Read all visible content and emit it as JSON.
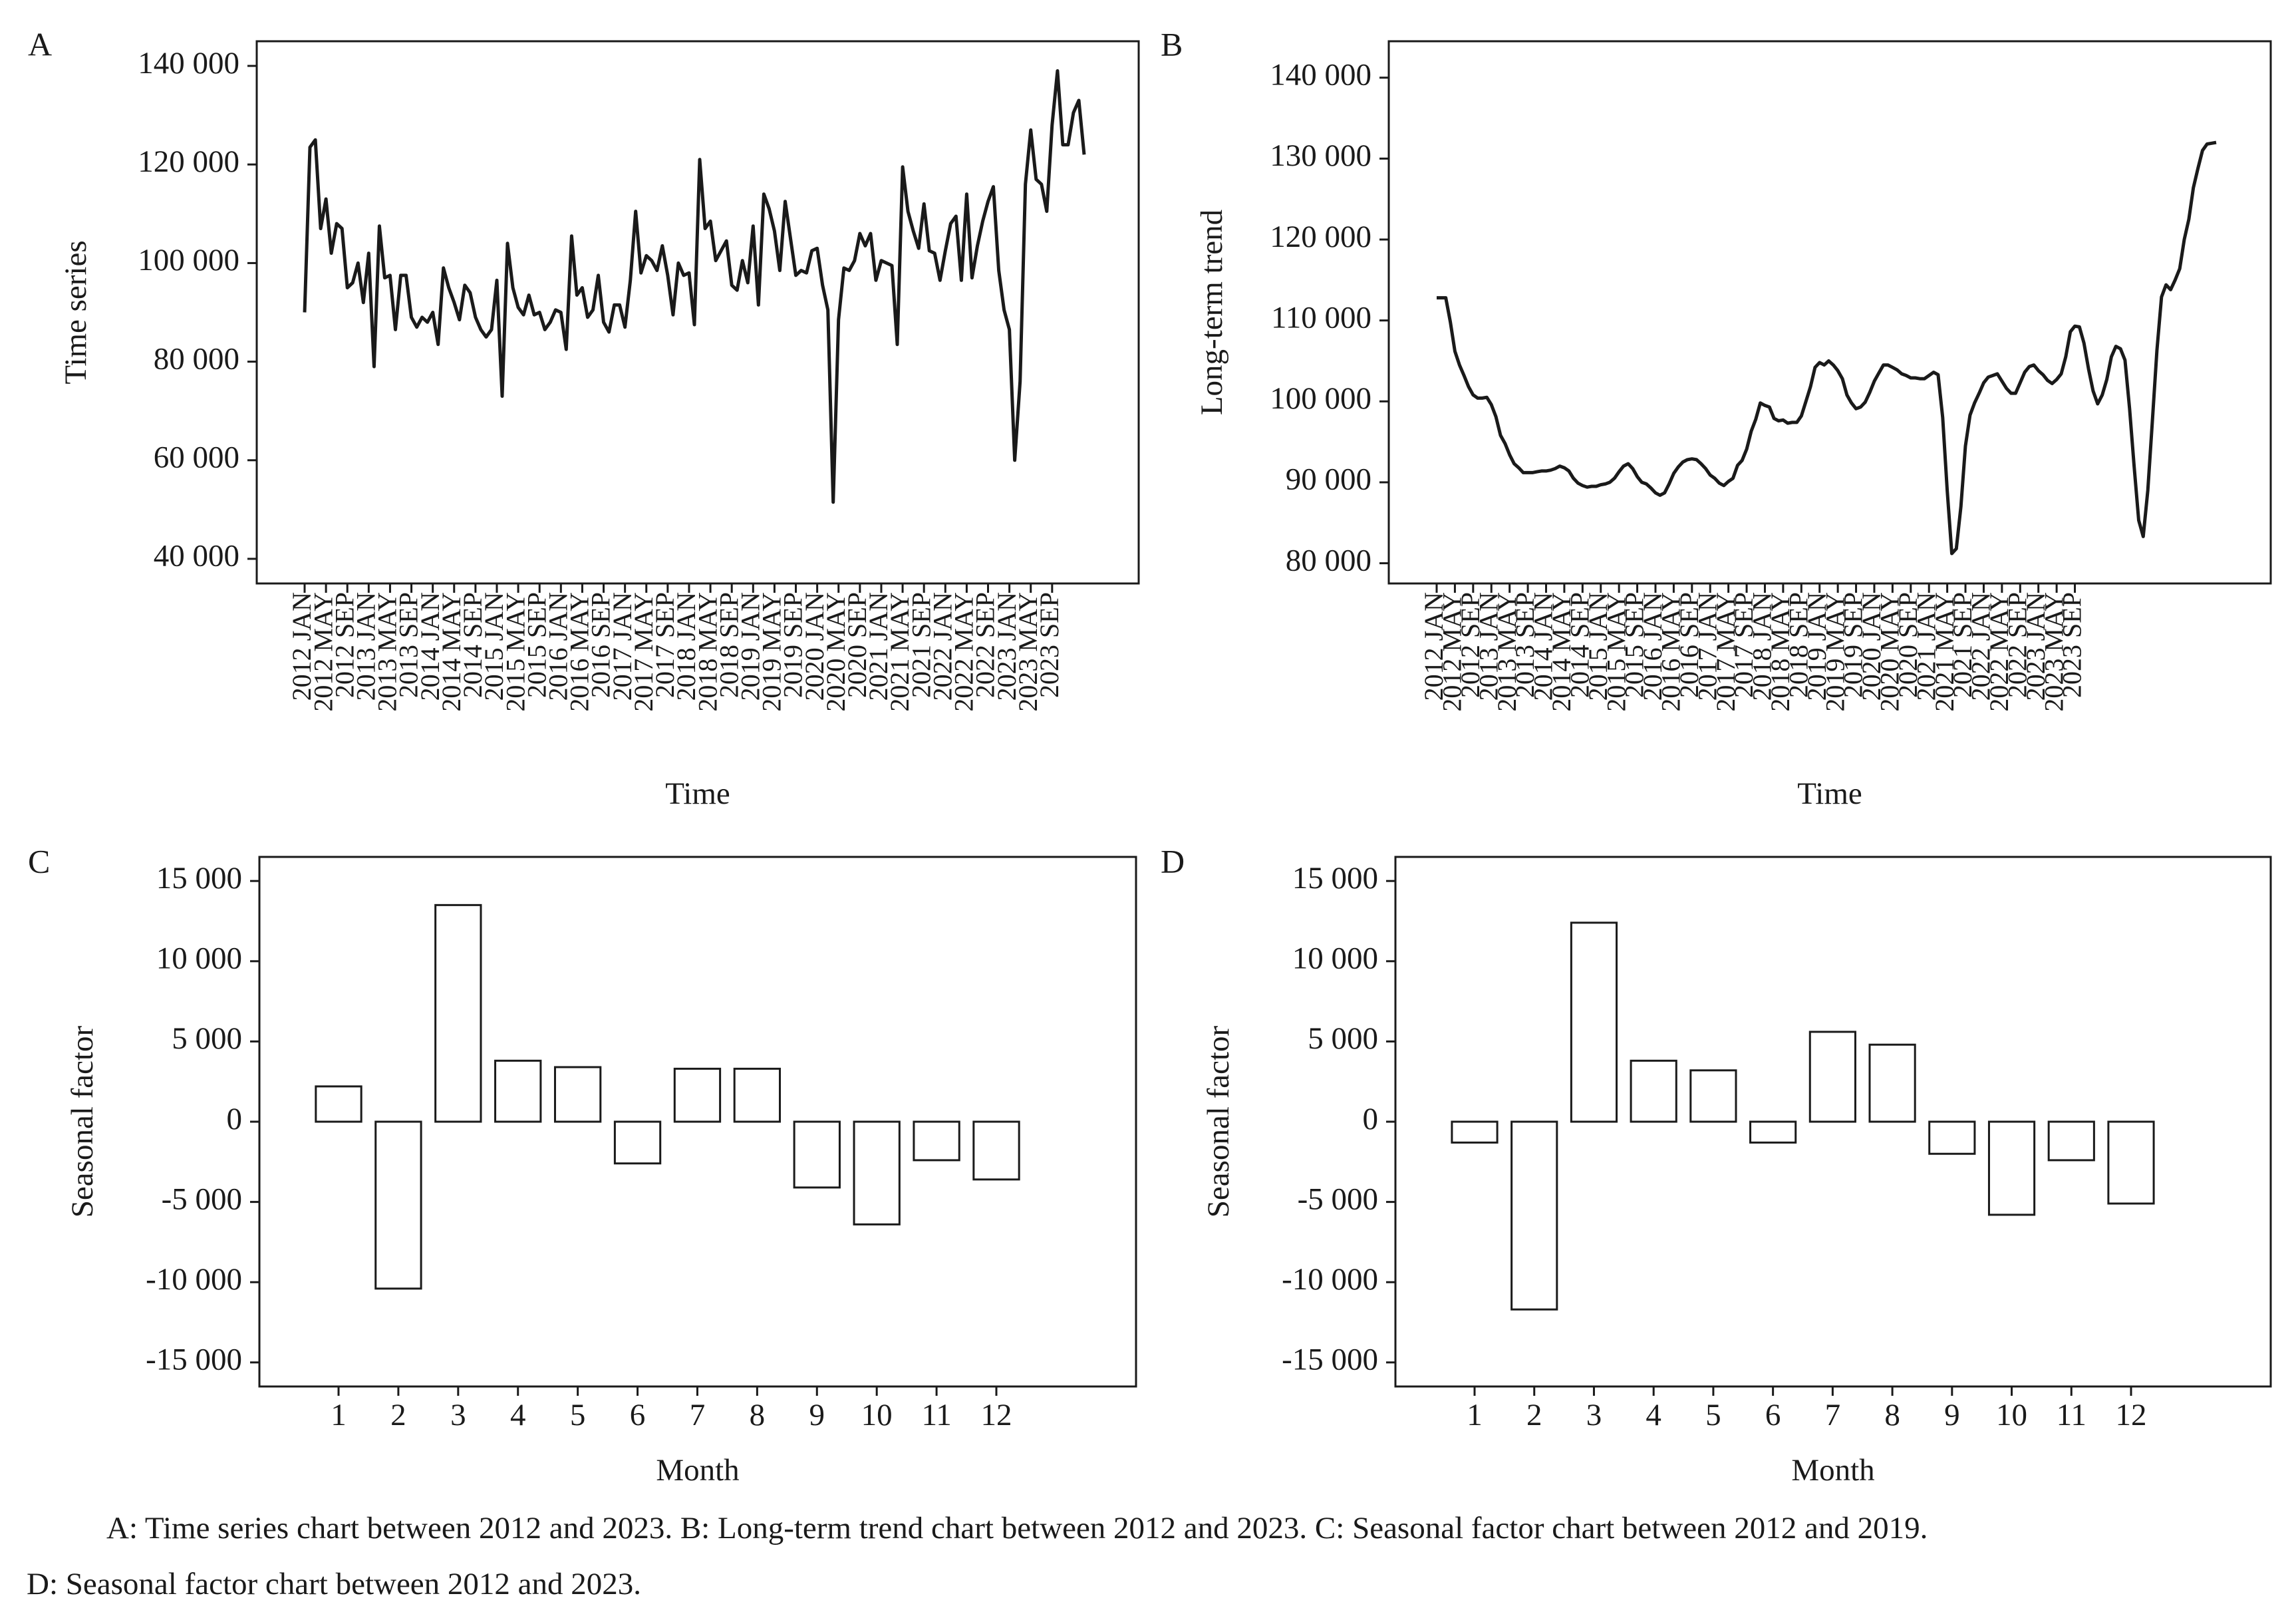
{
  "caption": {
    "line1": "A: Time series chart between 2012 and 2023. B: Long-term trend chart between 2012 and 2023. C: Seasonal factor chart between 2012 and 2019.",
    "line2": "D: Seasonal factor chart between 2012 and 2023."
  },
  "chart_data": [
    {
      "panel": "A",
      "type": "line",
      "xlabel": "Time",
      "ylabel": "Time series",
      "ylim": [
        35000,
        145000
      ],
      "yticks": [
        40000,
        60000,
        80000,
        100000,
        120000,
        140000
      ],
      "ytick_labels": [
        "40 000",
        "60 000",
        "80 000",
        "100 000",
        "120 000",
        "140 000"
      ],
      "xtick_labels": [
        "2012 JAN",
        "2012 MAY",
        "2012 SEP",
        "2013 JAN",
        "2013 MAY",
        "2013 SEP",
        "2014 JAN",
        "2014 MAY",
        "2014 SEP",
        "2015 JAN",
        "2015 MAY",
        "2015 SEP",
        "2016 JAN",
        "2016 MAY",
        "2016 SEP",
        "2017 JAN",
        "2017 MAY",
        "2017 SEP",
        "2018 JAN",
        "2018 MAY",
        "2018 SEP",
        "2019 JAN",
        "2019 MAY",
        "2019 SEP",
        "2020 JAN",
        "2020 MAY",
        "2020 SEP",
        "2021 JAN",
        "2021 MAY",
        "2021 SEP",
        "2022 JAN",
        "2022 MAY",
        "2022 SEP",
        "2023 JAN",
        "2023 MAY",
        "2023 SEP"
      ],
      "series": [
        {
          "values": [
            90000,
            123500,
            125000,
            107000,
            113000,
            102000,
            108000,
            107000,
            95000,
            96000,
            100000,
            92000,
            102000,
            79000,
            107500,
            97000,
            97500,
            86500,
            97500,
            97500,
            89000,
            87000,
            89000,
            88000,
            90000,
            83500,
            99000,
            95000,
            92000,
            88500,
            95500,
            94000,
            89000,
            86500,
            85000,
            86500,
            96500,
            73000,
            104000,
            95000,
            91000,
            89500,
            93500,
            89500,
            90000,
            86500,
            88000,
            90500,
            90000,
            82500,
            105500,
            93500,
            95000,
            89000,
            90500,
            97500,
            88000,
            86000,
            91500,
            91500,
            87000,
            96500,
            110500,
            98000,
            101500,
            100500,
            98500,
            103500,
            97500,
            89500,
            100000,
            97500,
            98000,
            87500,
            121000,
            107000,
            108500,
            100500,
            102500,
            104500,
            95500,
            94500,
            100500,
            96000,
            107500,
            91500,
            114000,
            111000,
            106500,
            98500,
            112500,
            105000,
            97500,
            98500,
            98000,
            102500,
            103000,
            95500,
            90500,
            51500,
            88500,
            99000,
            98500,
            100500,
            106000,
            103500,
            106000,
            96500,
            100500,
            100000,
            99500,
            83500,
            119500,
            110500,
            106500,
            103000,
            112000,
            102500,
            102000,
            96500,
            102500,
            108000,
            109500,
            96500,
            114000,
            97000,
            103500,
            108500,
            112500,
            115500,
            98500,
            90500,
            86500,
            60000,
            76000,
            116000,
            127000,
            117000,
            116000,
            110500,
            128000,
            139000,
            124000,
            124000,
            130500,
            133000,
            122000
          ]
        }
      ]
    },
    {
      "panel": "B",
      "type": "line",
      "xlabel": "Time",
      "ylabel": "Long-term trend",
      "ylim": [
        77500,
        144500
      ],
      "yticks": [
        80000,
        90000,
        100000,
        110000,
        120000,
        130000,
        140000
      ],
      "ytick_labels": [
        "80 000",
        "90 000",
        "100 000",
        "110 000",
        "120 000",
        "130 000",
        "140 000"
      ],
      "xtick_labels": [
        "2012 JAN",
        "2012 MAY",
        "2012 SEP",
        "2013 JAN",
        "2013 MAY",
        "2013 SEP",
        "2014 JAN",
        "2014 MAY",
        "2014 SEP",
        "2015 JAN",
        "2015 MAY",
        "2015 SEP",
        "2016 JAN",
        "2016 MAY",
        "2016 SEP",
        "2017 JAN",
        "2017 MAY",
        "2017 SEP",
        "2018 JAN",
        "2018 MAY",
        "2018 SEP",
        "2019 JAN",
        "2019 MAY",
        "2019 SEP",
        "2020 JAN",
        "2020 MAY",
        "2020 SEP",
        "2021 JAN",
        "2021 MAY",
        "2021 SEP",
        "2022 JAN",
        "2022 MAY",
        "2022 SEP",
        "2023 JAN",
        "2023 MAY",
        "2023 SEP"
      ],
      "series": [
        {
          "values": [
            112800,
            112800,
            112800,
            109800,
            106200,
            104500,
            103200,
            101800,
            100800,
            100400,
            100400,
            100500,
            99600,
            98100,
            95800,
            94800,
            93400,
            92300,
            91800,
            91200,
            91200,
            91200,
            91300,
            91400,
            91400,
            91500,
            91700,
            92000,
            91800,
            91400,
            90500,
            89900,
            89600,
            89400,
            89500,
            89500,
            89700,
            89800,
            90000,
            90500,
            91300,
            92000,
            92300,
            91700,
            90700,
            90000,
            89800,
            89300,
            88700,
            88400,
            88700,
            89800,
            91100,
            91900,
            92500,
            92800,
            92900,
            92800,
            92300,
            91700,
            90900,
            90500,
            89900,
            89600,
            90100,
            90500,
            92100,
            92700,
            94100,
            96300,
            97800,
            99800,
            99500,
            99300,
            97900,
            97600,
            97700,
            97300,
            97400,
            97400,
            98200,
            100000,
            101800,
            104200,
            104800,
            104500,
            105000,
            104500,
            103800,
            102800,
            100800,
            99800,
            99100,
            99300,
            99900,
            101100,
            102500,
            103500,
            104500,
            104500,
            104200,
            103900,
            103400,
            103200,
            102900,
            102900,
            102800,
            102800,
            103200,
            103600,
            103300,
            98000,
            89000,
            81200,
            81800,
            87000,
            94500,
            98300,
            99800,
            101000,
            102300,
            103000,
            103200,
            103400,
            102500,
            101600,
            101000,
            101000,
            102300,
            103600,
            104300,
            104500,
            103800,
            103300,
            102600,
            102200,
            102700,
            103400,
            105500,
            108600,
            109300,
            109200,
            107200,
            104000,
            101300,
            99700,
            100800,
            102700,
            105500,
            106800,
            106500,
            105100,
            99100,
            92000,
            85300,
            83300,
            89000,
            97500,
            106300,
            112900,
            114400,
            113800,
            115000,
            116400,
            120000,
            122500,
            126400,
            128800,
            131000,
            131800,
            131900,
            132000
          ]
        }
      ]
    },
    {
      "panel": "C",
      "type": "bar",
      "xlabel": "Month",
      "ylabel": "Seasonal factor",
      "ylim": [
        -16500,
        16500
      ],
      "yticks": [
        -15000,
        -10000,
        -5000,
        0,
        5000,
        10000,
        15000
      ],
      "ytick_labels": [
        "-15 000",
        "-10 000",
        "-5 000",
        "0",
        "5 000",
        "10 000",
        "15 000"
      ],
      "categories": [
        "1",
        "2",
        "3",
        "4",
        "5",
        "6",
        "7",
        "8",
        "9",
        "10",
        "11",
        "12"
      ],
      "values": [
        2200,
        -10400,
        13500,
        3800,
        3400,
        -2600,
        3300,
        3300,
        -4100,
        -6400,
        -2400,
        -3600
      ]
    },
    {
      "panel": "D",
      "type": "bar",
      "xlabel": "Month",
      "ylabel": "Seasonal factor",
      "ylim": [
        -16500,
        16500
      ],
      "yticks": [
        -15000,
        -10000,
        -5000,
        0,
        5000,
        10000,
        15000
      ],
      "ytick_labels": [
        "-15 000",
        "-10 000",
        "-5 000",
        "0",
        "5 000",
        "10 000",
        "15 000"
      ],
      "categories": [
        "1",
        "2",
        "3",
        "4",
        "5",
        "6",
        "7",
        "8",
        "9",
        "10",
        "11",
        "12"
      ],
      "values": [
        -1300,
        -11700,
        12400,
        3800,
        3200,
        -1300,
        5600,
        4800,
        -2000,
        -5800,
        -2400,
        -5100
      ]
    }
  ]
}
